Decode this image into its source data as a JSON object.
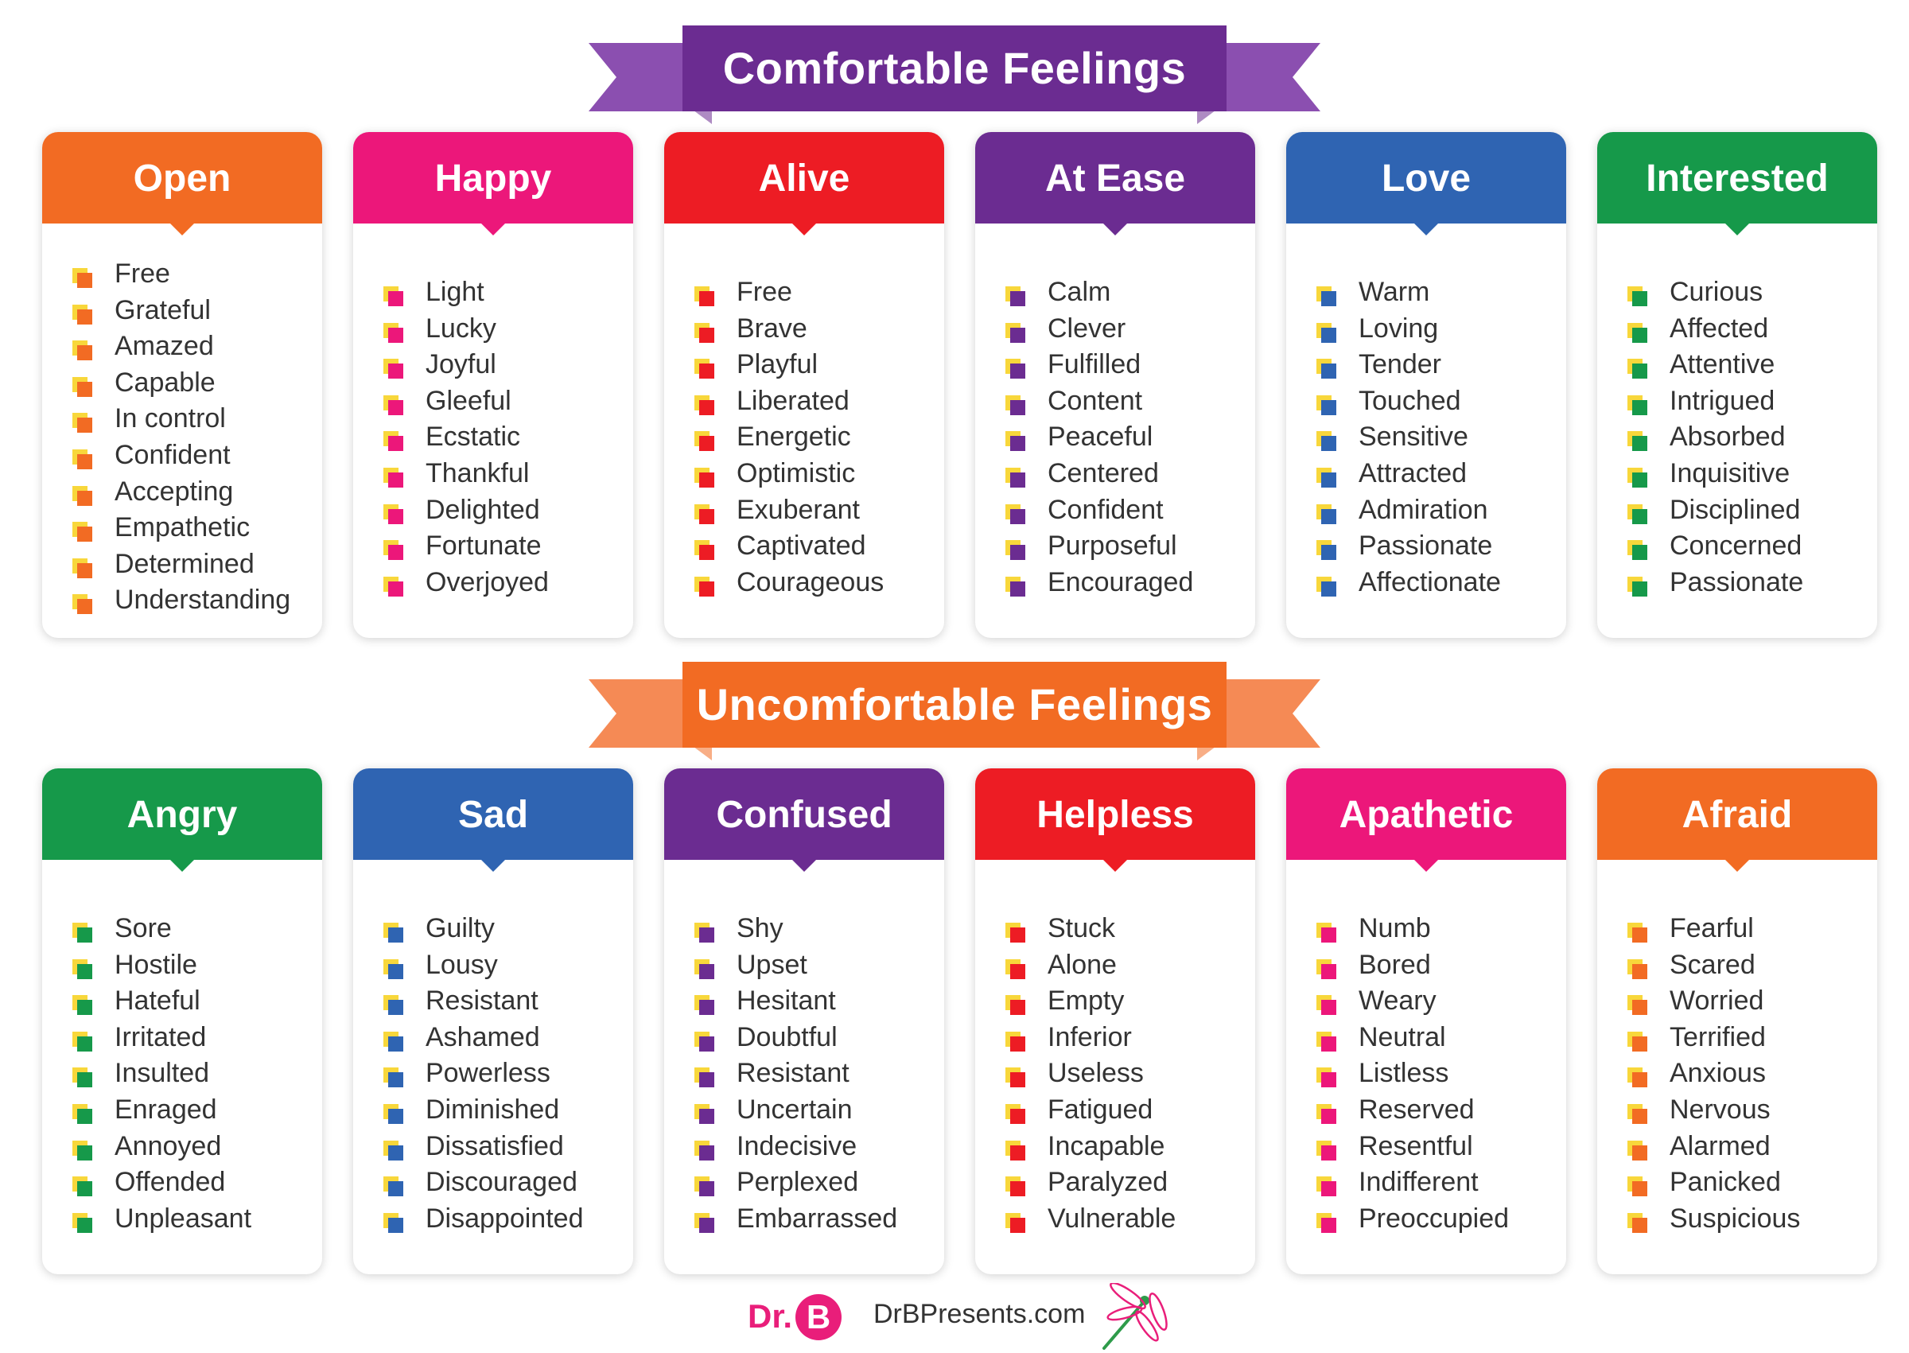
{
  "sections": [
    {
      "title": "Comfortable Feelings",
      "color": "#6b2c91",
      "tail_color": "#8b4fb0",
      "groups": [
        {
          "name": "Open",
          "color": "#f26b23",
          "items": [
            "Free",
            "Grateful",
            "Amazed",
            "Capable",
            "In control",
            "Confident",
            "Accepting",
            "Empathetic",
            "Determined",
            "Understanding"
          ]
        },
        {
          "name": "Happy",
          "color": "#ec177a",
          "items": [
            "Light",
            "Lucky",
            "Joyful",
            "Gleeful",
            "Ecstatic",
            "Thankful",
            "Delighted",
            "Fortunate",
            "Overjoyed"
          ]
        },
        {
          "name": "Alive",
          "color": "#ed1c24",
          "items": [
            "Free",
            "Brave",
            "Playful",
            "Liberated",
            "Energetic",
            "Optimistic",
            "Exuberant",
            "Captivated",
            "Courageous"
          ]
        },
        {
          "name": "At Ease",
          "color": "#6b2c91",
          "items": [
            "Calm",
            "Clever",
            "Fulfilled",
            "Content",
            "Peaceful",
            "Centered",
            "Confident",
            "Purposeful",
            "Encouraged"
          ]
        },
        {
          "name": "Love",
          "color": "#2f64b2",
          "items": [
            "Warm",
            "Loving",
            "Tender",
            "Touched",
            "Sensitive",
            "Attracted",
            "Admiration",
            "Passionate",
            "Affectionate"
          ]
        },
        {
          "name": "Interested",
          "color": "#16994a",
          "items": [
            "Curious",
            "Affected",
            "Attentive",
            "Intrigued",
            "Absorbed",
            "Inquisitive",
            "Disciplined",
            "Concerned",
            "Passionate"
          ]
        }
      ]
    },
    {
      "title": "Uncomfortable Feelings",
      "color": "#f26b23",
      "tail_color": "#f58a55",
      "groups": [
        {
          "name": "Angry",
          "color": "#16994a",
          "items": [
            "Sore",
            "Hostile",
            "Hateful",
            "Irritated",
            "Insulted",
            "Enraged",
            "Annoyed",
            "Offended",
            "Unpleasant"
          ]
        },
        {
          "name": "Sad",
          "color": "#2f64b2",
          "items": [
            "Guilty",
            "Lousy",
            "Resistant",
            "Ashamed",
            "Powerless",
            "Diminished",
            "Dissatisfied",
            "Discouraged",
            "Disappointed"
          ]
        },
        {
          "name": "Confused",
          "color": "#6b2c91",
          "items": [
            "Shy",
            "Upset",
            "Hesitant",
            "Doubtful",
            "Resistant",
            "Uncertain",
            "Indecisive",
            "Perplexed",
            "Embarrassed"
          ]
        },
        {
          "name": "Helpless",
          "color": "#ed1c24",
          "items": [
            "Stuck",
            "Alone",
            "Empty",
            "Inferior",
            "Useless",
            "Fatigued",
            "Incapable",
            "Paralyzed",
            "Vulnerable"
          ]
        },
        {
          "name": "Apathetic",
          "color": "#ec177a",
          "items": [
            "Numb",
            "Bored",
            "Weary",
            "Neutral",
            "Listless",
            "Reserved",
            "Resentful",
            "Indifferent",
            "Preoccupied"
          ]
        },
        {
          "name": "Afraid",
          "color": "#f26b23",
          "items": [
            "Fearful",
            "Scared",
            "Worried",
            "Terrified",
            "Anxious",
            "Nervous",
            "Alarmed",
            "Panicked",
            "Suspicious"
          ]
        }
      ]
    }
  ],
  "footer": {
    "logo_text": "Dr.",
    "logo_letter": "B",
    "site": "DrBPresents.com",
    "icon": "dragonfly-icon"
  }
}
